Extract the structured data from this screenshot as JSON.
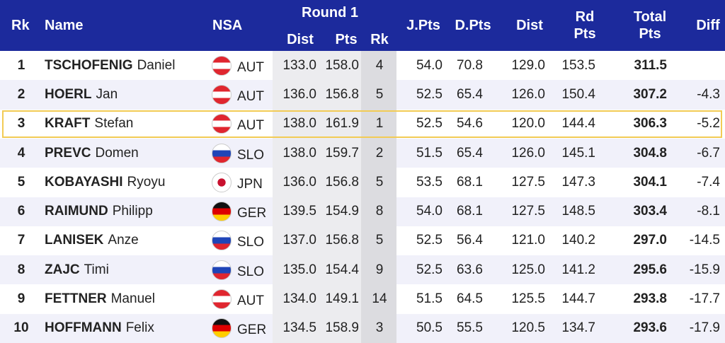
{
  "header": {
    "rank": "Rk",
    "name": "Name",
    "nsa": "NSA",
    "round": "Round 1",
    "round_dist": "Dist",
    "round_pts": "Pts",
    "round_rank": "Rk",
    "jpts": "J.Pts",
    "dpts": "D.Pts",
    "dist": "Dist",
    "rdpts": [
      "Rd",
      "Pts"
    ],
    "total": [
      "Total",
      "Pts"
    ],
    "diff": "Diff"
  },
  "rows": [
    {
      "rank": "1",
      "surname": "TSCHOFENIG",
      "firstname": "Daniel",
      "nsa": "AUT",
      "r_dist": "133.0",
      "r_pts": "158.0",
      "r_rank": "4",
      "jpts": "54.0",
      "dpts": "70.8",
      "dist": "129.0",
      "rdpts": "153.5",
      "total": "311.5"
    },
    {
      "rank": "2",
      "surname": "HOERL",
      "firstname": "Jan",
      "nsa": "AUT",
      "r_dist": "136.0",
      "r_pts": "156.8",
      "r_rank": "5",
      "jpts": "52.5",
      "dpts": "65.4",
      "dist": "126.0",
      "rdpts": "150.4",
      "total": "307.2",
      "diff": "-4.3"
    },
    {
      "rank": "3",
      "surname": "KRAFT",
      "firstname": "Stefan",
      "nsa": "AUT",
      "r_dist": "138.0",
      "r_pts": "161.9",
      "r_rank": "1",
      "jpts": "52.5",
      "dpts": "54.6",
      "dist": "120.0",
      "rdpts": "144.4",
      "total": "306.3",
      "diff": "-5.2"
    },
    {
      "rank": "4",
      "surname": "PREVC",
      "firstname": "Domen",
      "nsa": "SLO",
      "r_dist": "138.0",
      "r_pts": "159.7",
      "r_rank": "2",
      "jpts": "51.5",
      "dpts": "65.4",
      "dist": "126.0",
      "rdpts": "145.1",
      "total": "304.8",
      "diff": "-6.7"
    },
    {
      "rank": "5",
      "surname": "KOBAYASHI",
      "firstname": "Ryoyu",
      "nsa": "JPN",
      "r_dist": "136.0",
      "r_pts": "156.8",
      "r_rank": "5",
      "jpts": "53.5",
      "dpts": "68.1",
      "dist": "127.5",
      "rdpts": "147.3",
      "total": "304.1",
      "diff": "-7.4"
    },
    {
      "rank": "6",
      "surname": "RAIMUND",
      "firstname": "Philipp",
      "nsa": "GER",
      "r_dist": "139.5",
      "r_pts": "154.9",
      "r_rank": "8",
      "jpts": "54.0",
      "dpts": "68.1",
      "dist": "127.5",
      "rdpts": "148.5",
      "total": "303.4",
      "diff": "-8.1"
    },
    {
      "rank": "7",
      "surname": "LANISEK",
      "firstname": "Anze",
      "nsa": "SLO",
      "r_dist": "137.0",
      "r_pts": "156.8",
      "r_rank": "5",
      "jpts": "52.5",
      "dpts": "56.4",
      "dist": "121.0",
      "rdpts": "140.2",
      "total": "297.0",
      "diff": "-14.5"
    },
    {
      "rank": "8",
      "surname": "ZAJC",
      "firstname": "Timi",
      "nsa": "SLO",
      "r_dist": "135.0",
      "r_pts": "154.4",
      "r_rank": "9",
      "jpts": "52.5",
      "dpts": "63.6",
      "dist": "125.0",
      "rdpts": "141.2",
      "total": "295.6",
      "diff": "-15.9"
    },
    {
      "rank": "9",
      "surname": "FETTNER",
      "firstname": "Manuel",
      "nsa": "AUT",
      "r_dist": "134.0",
      "r_pts": "149.1",
      "r_rank": "14",
      "jpts": "51.5",
      "dpts": "64.5",
      "dist": "125.5",
      "rdpts": "144.7",
      "total": "293.8",
      "diff": "-17.7"
    },
    {
      "rank": "10",
      "surname": "HOFFMANN",
      "firstname": "Felix",
      "nsa": "GER",
      "r_dist": "134.5",
      "r_pts": "158.9",
      "r_rank": "3",
      "jpts": "50.5",
      "dpts": "55.5",
      "dist": "120.5",
      "rdpts": "134.7",
      "total": "293.6",
      "diff": "-17.9"
    }
  ]
}
